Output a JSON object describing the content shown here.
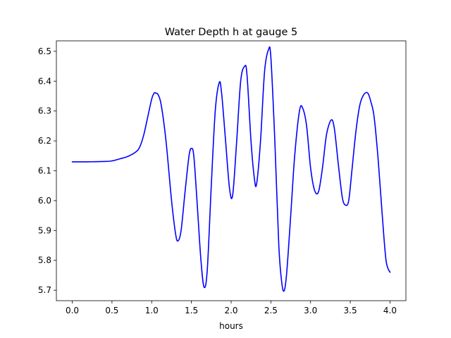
{
  "chart_data": {
    "type": "line",
    "title": "Water Depth h at gauge 5",
    "xlabel": "hours",
    "ylabel": "",
    "xlim": [
      -0.2,
      4.2
    ],
    "ylim": [
      5.665,
      6.535
    ],
    "xticks": [
      0.0,
      0.5,
      1.0,
      1.5,
      2.0,
      2.5,
      3.0,
      3.5,
      4.0
    ],
    "xtick_labels": [
      "0.0",
      "0.5",
      "1.0",
      "1.5",
      "2.0",
      "2.5",
      "3.0",
      "3.5",
      "4.0"
    ],
    "yticks": [
      5.7,
      5.8,
      5.9,
      6.0,
      6.1,
      6.2,
      6.3,
      6.4,
      6.5
    ],
    "ytick_labels": [
      "5.7",
      "5.8",
      "5.9",
      "6.0",
      "6.1",
      "6.2",
      "6.3",
      "6.4",
      "6.5"
    ],
    "grid": false,
    "series": [
      {
        "color": "#0000ff",
        "x": [
          0.0,
          0.2,
          0.4,
          0.5,
          0.6,
          0.7,
          0.8,
          0.85,
          0.9,
          0.95,
          1.0,
          1.03,
          1.05,
          1.08,
          1.12,
          1.18,
          1.25,
          1.3,
          1.33,
          1.37,
          1.42,
          1.47,
          1.5,
          1.53,
          1.57,
          1.62,
          1.66,
          1.7,
          1.75,
          1.8,
          1.85,
          1.88,
          1.93,
          1.98,
          2.02,
          2.07,
          2.12,
          2.17,
          2.2,
          2.25,
          2.29,
          2.32,
          2.37,
          2.42,
          2.47,
          2.5,
          2.55,
          2.6,
          2.64,
          2.67,
          2.7,
          2.75,
          2.8,
          2.86,
          2.9,
          2.95,
          3.0,
          3.05,
          3.1,
          3.15,
          3.2,
          3.26,
          3.3,
          3.35,
          3.4,
          3.44,
          3.48,
          3.52,
          3.57,
          3.62,
          3.67,
          3.72,
          3.76,
          3.8,
          3.85,
          3.9,
          3.95,
          4.0
        ],
        "y": [
          6.13,
          6.13,
          6.131,
          6.133,
          6.14,
          6.148,
          6.163,
          6.18,
          6.22,
          6.28,
          6.34,
          6.36,
          6.36,
          6.355,
          6.32,
          6.2,
          6.0,
          5.89,
          5.865,
          5.9,
          6.03,
          6.15,
          6.175,
          6.15,
          6.0,
          5.8,
          5.71,
          5.77,
          6.05,
          6.3,
          6.395,
          6.36,
          6.2,
          6.04,
          6.02,
          6.2,
          6.4,
          6.45,
          6.42,
          6.2,
          6.08,
          6.055,
          6.2,
          6.43,
          6.505,
          6.48,
          6.2,
          5.85,
          5.72,
          5.7,
          5.76,
          5.95,
          6.15,
          6.3,
          6.31,
          6.25,
          6.11,
          6.035,
          6.03,
          6.11,
          6.22,
          6.27,
          6.24,
          6.12,
          6.01,
          5.985,
          6.0,
          6.1,
          6.23,
          6.32,
          6.355,
          6.36,
          6.33,
          6.28,
          6.14,
          5.96,
          5.8,
          5.76
        ]
      }
    ]
  }
}
